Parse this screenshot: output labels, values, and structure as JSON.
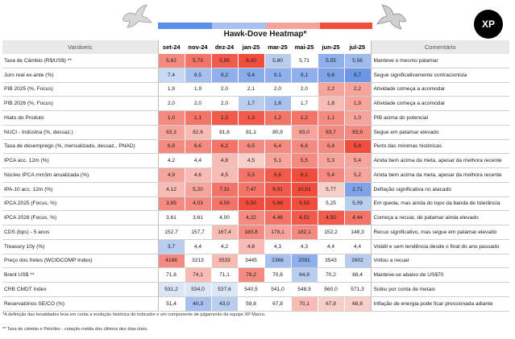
{
  "header": {
    "title": "Hawk-Dove Heatmap*",
    "logo_text": "XP",
    "col_variable": "Variáveis",
    "col_comment": "Comentário",
    "months": [
      "set-24",
      "nov-24",
      "dez-24",
      "jan-25",
      "mar-25",
      "mai-25",
      "jun-25",
      "jul-25"
    ],
    "scale_colors": [
      "#5b8ee6",
      "#a9c1ee",
      "#f5a49b",
      "#f04d3c"
    ]
  },
  "rows": [
    {
      "label": "Taxa de Câmbio (R$/US$) **",
      "values": [
        "5,62",
        "5,73",
        "5,95",
        "6,00",
        "5,80",
        "5,71",
        "5,55",
        "5,56"
      ],
      "colors": [
        "#f58a80",
        "#f47468",
        "#f25a4c",
        "#f04d3c",
        "#b9cdef",
        "#ffffff",
        "#8fb0ec",
        "#a0bcee"
      ],
      "comment": "Manteve o mesmo patamar"
    },
    {
      "label": "Juro real ex-ante (%)",
      "values": [
        "7,4",
        "8,5",
        "9,2",
        "9,4",
        "9,1",
        "9,1",
        "9,6",
        "9,7"
      ],
      "colors": [
        "#c9d8f3",
        "#a4bff0",
        "#8fb0ec",
        "#88abea",
        "#8fb0ec",
        "#8fb0ec",
        "#7ea3e8",
        "#6d97e6"
      ],
      "comment": "Segue significativamente contracionista"
    },
    {
      "label": "PIB 2025 (%, Focus)",
      "values": [
        "1,9",
        "1,9",
        "2,0",
        "2,1",
        "2,0",
        "2,0",
        "2,2",
        "2,2"
      ],
      "colors": [
        "#ffffff",
        "#ffffff",
        "#ffffff",
        "#ffffff",
        "#ffffff",
        "#ffffff",
        "#f7a59c",
        "#f7a59c"
      ],
      "comment": "Atividade começa a acomodar"
    },
    {
      "label": "PIB 2026 (%, Focus)",
      "values": [
        "2,0",
        "2,0",
        "2,0",
        "1,7",
        "1,6",
        "1,7",
        "1,8",
        "1,9"
      ],
      "colors": [
        "#ffffff",
        "#ffffff",
        "#ffffff",
        "#b9cdef",
        "#a9c1ee",
        "#ffffff",
        "#f7bcb5",
        "#f7a59c"
      ],
      "comment": "Atividade começa a acomodar"
    },
    {
      "label": "Hiato do Produto",
      "values": [
        "1,0",
        "1,1",
        "1,3",
        "1,3",
        "1,2",
        "1,2",
        "1,1",
        "1,0"
      ],
      "colors": [
        "#f58a80",
        "#f47468",
        "#f25a4c",
        "#f25a4c",
        "#f47468",
        "#f47468",
        "#f58a80",
        "#f7a59c"
      ],
      "comment": "PIB acima do potencial"
    },
    {
      "label": "NUCI - Indústria (%, dessaz.)",
      "values": [
        "83,3",
        "82,6",
        "81,6",
        "81,1",
        "80,9",
        "83,0",
        "83,7",
        "83,9"
      ],
      "colors": [
        "#f7a59c",
        "#f8bcb5",
        "#ffffff",
        "#ffffff",
        "#ffffff",
        "#f7a59c",
        "#f58a80",
        "#f58a80"
      ],
      "comment": "Segue em patamar elevado"
    },
    {
      "label": "Taxa de desemprego (%, mensalizado, dessaz., PNAD)",
      "values": [
        "6,8",
        "6,6",
        "6,2",
        "6,5",
        "6,4",
        "6,6",
        "6,4",
        "5,8"
      ],
      "colors": [
        "#f58a80",
        "#f58a80",
        "#f47468",
        "#f58a80",
        "#f58a80",
        "#f58a80",
        "#f58a80",
        "#f04d3c"
      ],
      "comment": "Perto das mínimas históricas"
    },
    {
      "label": "IPCA acc. 12m (%)",
      "values": [
        "4,2",
        "4,4",
        "4,8",
        "4,5",
        "5,1",
        "5,5",
        "5,3",
        "5,4"
      ],
      "colors": [
        "#ffffff",
        "#ffffff",
        "#f7bcb5",
        "#f8cfc9",
        "#f7a59c",
        "#f58a80",
        "#f7a59c",
        "#f7a59c"
      ],
      "comment": "Ainda bem acima da meta, apesar da melhora recente"
    },
    {
      "label": "Núcleo IPCA mm3m anualizada (%)",
      "values": [
        "4,9",
        "4,6",
        "4,5",
        "5,5",
        "5,6",
        "6,1",
        "5,4",
        "5,2"
      ],
      "colors": [
        "#f7a59c",
        "#f8bcb5",
        "#f8bcb5",
        "#f47468",
        "#f25a4c",
        "#f04d3c",
        "#f58a80",
        "#f7a59c"
      ],
      "comment": "Ainda bem acima da meta, apesar da melhora recente"
    },
    {
      "label": "IPA-10 acc. 12m (%)",
      "values": [
        "4,12",
        "5,20",
        "7,31",
        "7,47",
        "9,91",
        "10,01",
        "5,77",
        "2,71"
      ],
      "colors": [
        "#f8bcb5",
        "#f7a59c",
        "#f47468",
        "#f47468",
        "#f25a4c",
        "#f04d3c",
        "#f8cfc9",
        "#7ea3e8"
      ],
      "comment": "Deflação significativa no atacado"
    },
    {
      "label": "IPCA 2025 (Focus, %)",
      "values": [
        "3,95",
        "4,03",
        "4,59",
        "5,50",
        "5,66",
        "5,53",
        "5,25",
        "5,09"
      ],
      "colors": [
        "#f58a80",
        "#f58a80",
        "#f47468",
        "#f04d3c",
        "#f04d3c",
        "#f04d3c",
        "#ffffff",
        "#b9cdef"
      ],
      "comment": "Em queda, mas ainda do topo da banda de tolerância"
    },
    {
      "label": "IPCA 2026 (Focus, %)",
      "values": [
        "3,61",
        "3,61",
        "4,00",
        "4,22",
        "4,48",
        "4,51",
        "4,50",
        "4,44"
      ],
      "colors": [
        "#ffffff",
        "#ffffff",
        "#ffffff",
        "#f58a80",
        "#f47468",
        "#f25a4c",
        "#f25a4c",
        "#f47468"
      ],
      "comment": "Começa a recuar, de patamar ainda elevado"
    },
    {
      "label": "CDS (bps) - 5 anos",
      "values": [
        "152,7",
        "157,7",
        "167,4",
        "180,8",
        "178,1",
        "182,1",
        "152,2",
        "148,3"
      ],
      "colors": [
        "#ffffff",
        "#ffffff",
        "#f8bcb5",
        "#f58a80",
        "#f7a59c",
        "#f58a80",
        "#ffffff",
        "#ffffff"
      ],
      "comment": "Recuo significativo, mas segue em patamar elevado"
    },
    {
      "label": "Treasury 10y (%)",
      "values": [
        "3,7",
        "4,4",
        "4,2",
        "4,6",
        "4,3",
        "4,3",
        "4,4",
        "4,4"
      ],
      "colors": [
        "#b9cdef",
        "#ffffff",
        "#ffffff",
        "#f8bcb5",
        "#ffffff",
        "#ffffff",
        "#ffffff",
        "#ffffff"
      ],
      "comment": "Volátil e sem tendência desde o final do ano passado"
    },
    {
      "label": "Preço dos fretes (WCIDCOMP Index)",
      "values": [
        "4168",
        "3213",
        "3533",
        "3445",
        "2368",
        "2091",
        "3543",
        "2602"
      ],
      "colors": [
        "#f58a80",
        "#ffffff",
        "#f8bcb5",
        "#ffffff",
        "#a9c1ee",
        "#8fb0ec",
        "#ffffff",
        "#b9cdef"
      ],
      "comment": "Voltou a recuar"
    },
    {
      "label": "Brent US$ **",
      "values": [
        "71,6",
        "74,1",
        "71,1",
        "78,2",
        "70,6",
        "64,9",
        "70,2",
        "68,4"
      ],
      "colors": [
        "#ffffff",
        "#f8bcb5",
        "#ffffff",
        "#f58a80",
        "#ffffff",
        "#b9cdef",
        "#ffffff",
        "#ffffff"
      ],
      "comment": "Manteve-se abaixo de US$70"
    },
    {
      "label": "CRB CMDT Index",
      "values": [
        "531,2",
        "534,0",
        "537,6",
        "540,5",
        "541,0",
        "548,9",
        "560,0",
        "571,3"
      ],
      "colors": [
        "#dce6f6",
        "#dce6f6",
        "#dce6f6",
        "#ffffff",
        "#ffffff",
        "#ffffff",
        "#ffffff",
        "#ffffff"
      ],
      "comment": "Subiu por conta de metais"
    },
    {
      "label": "Reservatórios SE/CO (%)",
      "values": [
        "51,4",
        "40,3",
        "43,0",
        "59,8",
        "67,8",
        "70,1",
        "67,8",
        "68,8"
      ],
      "colors": [
        "#ffffff",
        "#a9c1ee",
        "#b9cdef",
        "#ffffff",
        "#ffffff",
        "#f8bcb5",
        "#f8cfc9",
        "#f8cfc9"
      ],
      "comment": "Inflação de energia pode ficar pressionada adiante"
    }
  ],
  "footnotes": [
    "*A definição das tonalidades leva em conta a evolução histórica do indicador e um componente de julgamento da equipe XP Macro.",
    "** Taxa de câmbio e Petróleo - cotação média dos últimos dez dias úteis."
  ]
}
